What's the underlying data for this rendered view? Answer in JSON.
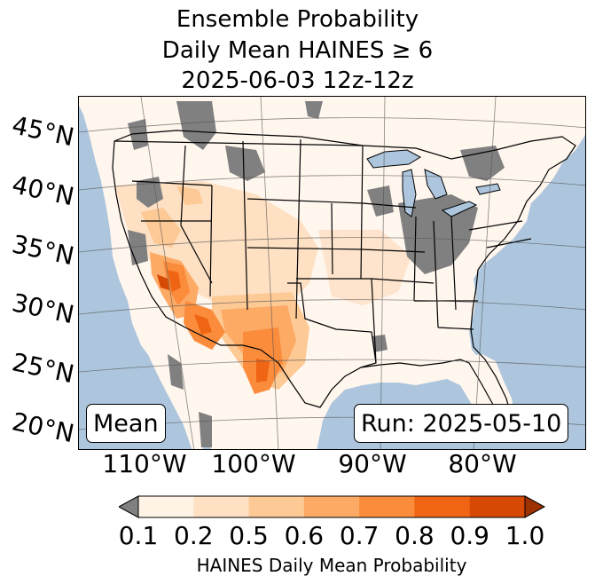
{
  "title": {
    "line1": "Ensemble Probability",
    "line2": "Daily Mean HAINES ≥ 6",
    "line3": "2025-06-03 12z-12z"
  },
  "map": {
    "lat_labels": [
      "45°N",
      "40°N",
      "35°N",
      "30°N",
      "25°N",
      "20°N"
    ],
    "lon_labels": [
      "110°W",
      "100°W",
      "90°W",
      "80°W"
    ],
    "stat_label": "Mean",
    "run_label": "Run: 2025-05-10",
    "colors": {
      "ocean": "#adc6dd",
      "below_min": "#808080",
      "borders": "#000000",
      "gridlines": "#555555"
    }
  },
  "colorbar": {
    "ticks": [
      "0.1",
      "0.2",
      "0.5",
      "0.6",
      "0.7",
      "0.8",
      "0.9",
      "1.0"
    ],
    "bin_colors": [
      "#fff3e6",
      "#fee0c3",
      "#fdc995",
      "#fdaa65",
      "#fb8c3c",
      "#ef6514",
      "#d64a05"
    ],
    "under_color": "#808080",
    "over_color": "#9f3203",
    "label": "HAINES Daily Mean Probability"
  }
}
